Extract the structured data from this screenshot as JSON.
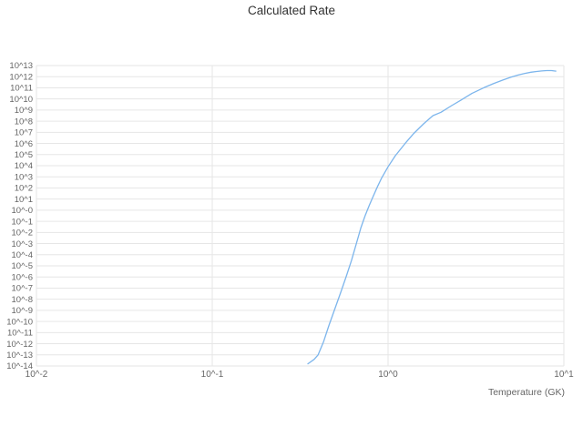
{
  "colors": {
    "background": "#ffffff",
    "line": "#7cb5ec",
    "grid": "#e6e6e6",
    "tick_label": "#666666",
    "title": "#333333",
    "axis_label": "#666666"
  },
  "chart_data": {
    "type": "line",
    "title": "Calculated Rate",
    "xlabel": "Temperature (GK)",
    "ylabel": "",
    "x_scale": "log",
    "y_scale": "log",
    "grid": true,
    "legend": false,
    "xlim_log10": [
      -2,
      1
    ],
    "ylim_log10": [
      -14,
      13
    ],
    "x_tick_labels": [
      "10^-2",
      "10^-1",
      "10^0",
      "10^1"
    ],
    "x_tick_log10": [
      -2,
      -1,
      0,
      1
    ],
    "y_tick_labels": [
      "10^13",
      "10^12",
      "10^11",
      "10^10",
      "10^9",
      "10^8",
      "10^7",
      "10^6",
      "10^5",
      "10^4",
      "10^3",
      "10^2",
      "10^1",
      "10^-0",
      "10^-1",
      "10^-2",
      "10^-3",
      "10^-4",
      "10^-5",
      "10^-6",
      "10^-7",
      "10^-8",
      "10^-9",
      "10^-10",
      "10^-11",
      "10^-12",
      "10^-13",
      "10^-14"
    ],
    "y_tick_log10": [
      13,
      12,
      11,
      10,
      9,
      8,
      7,
      6,
      5,
      4,
      3,
      2,
      1,
      0,
      -1,
      -2,
      -3,
      -4,
      -5,
      -6,
      -7,
      -8,
      -9,
      -10,
      -11,
      -12,
      -13,
      -14
    ],
    "series": [
      {
        "color": "#7cb5ec",
        "x": [
          0.35,
          0.38,
          0.4,
          0.43,
          0.46,
          0.5,
          0.54,
          0.58,
          0.62,
          0.66,
          0.7,
          0.74,
          0.78,
          0.82,
          0.87,
          0.92,
          1.0,
          1.1,
          1.25,
          1.4,
          1.6,
          1.8,
          2.0,
          2.3,
          2.6,
          3.0,
          3.5,
          4.0,
          4.5,
          5.0,
          5.5,
          6.0,
          6.5,
          7.0,
          7.5,
          8.0,
          8.5,
          9.0
        ],
        "log10_y": [
          -13.8,
          -13.4,
          -13.0,
          -11.8,
          -10.4,
          -8.8,
          -7.3,
          -5.9,
          -4.5,
          -3.0,
          -1.6,
          -0.5,
          0.4,
          1.2,
          2.1,
          2.9,
          3.9,
          4.9,
          6.0,
          6.9,
          7.8,
          8.5,
          8.8,
          9.4,
          9.9,
          10.5,
          11.0,
          11.4,
          11.7,
          11.95,
          12.15,
          12.3,
          12.4,
          12.47,
          12.52,
          12.55,
          12.55,
          12.5
        ]
      }
    ]
  }
}
